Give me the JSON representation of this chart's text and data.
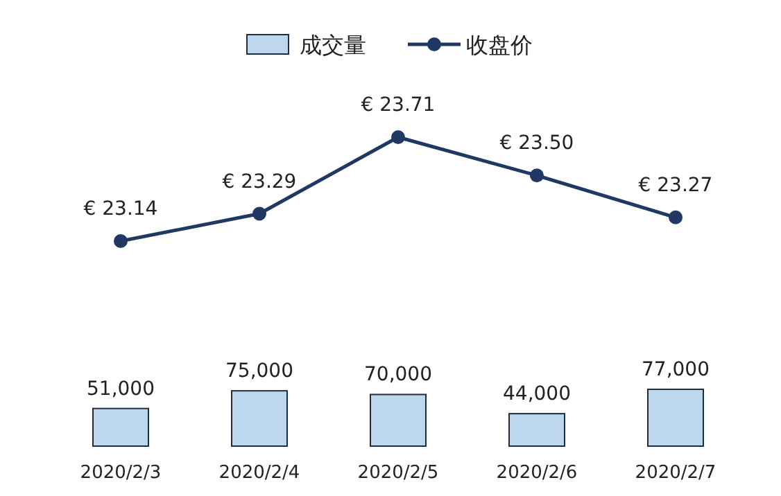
{
  "chart_data": [
    {
      "type": "line",
      "categories": [
        null,
        null,
        null,
        null,
        null
      ],
      "legend": "top right",
      "marker": "circle",
      "series": [
        {
          "name": "收盘价",
          "color": "#1f3864",
          "values": [
            23.14,
            23.29,
            23.71,
            23.5,
            23.27
          ],
          "value_labels": [
            "€ 23.14",
            "€ 23.29",
            "€ 23.71",
            "€ 23.50",
            "€ 23.27"
          ]
        }
      ]
    },
    {
      "type": "bar",
      "categories": [
        "2020/2/3",
        "2020/2/4",
        "2020/2/5",
        "2020/2/6",
        "2020/2/7"
      ],
      "legend": "top left",
      "series": [
        {
          "name": "成交量",
          "color": "#bdd7ee",
          "values": [
            51000,
            75000,
            70000,
            44000,
            77000
          ],
          "value_labels": [
            "51,000",
            "75,000",
            "70,000",
            "44,000",
            "77,000"
          ]
        }
      ]
    }
  ]
}
